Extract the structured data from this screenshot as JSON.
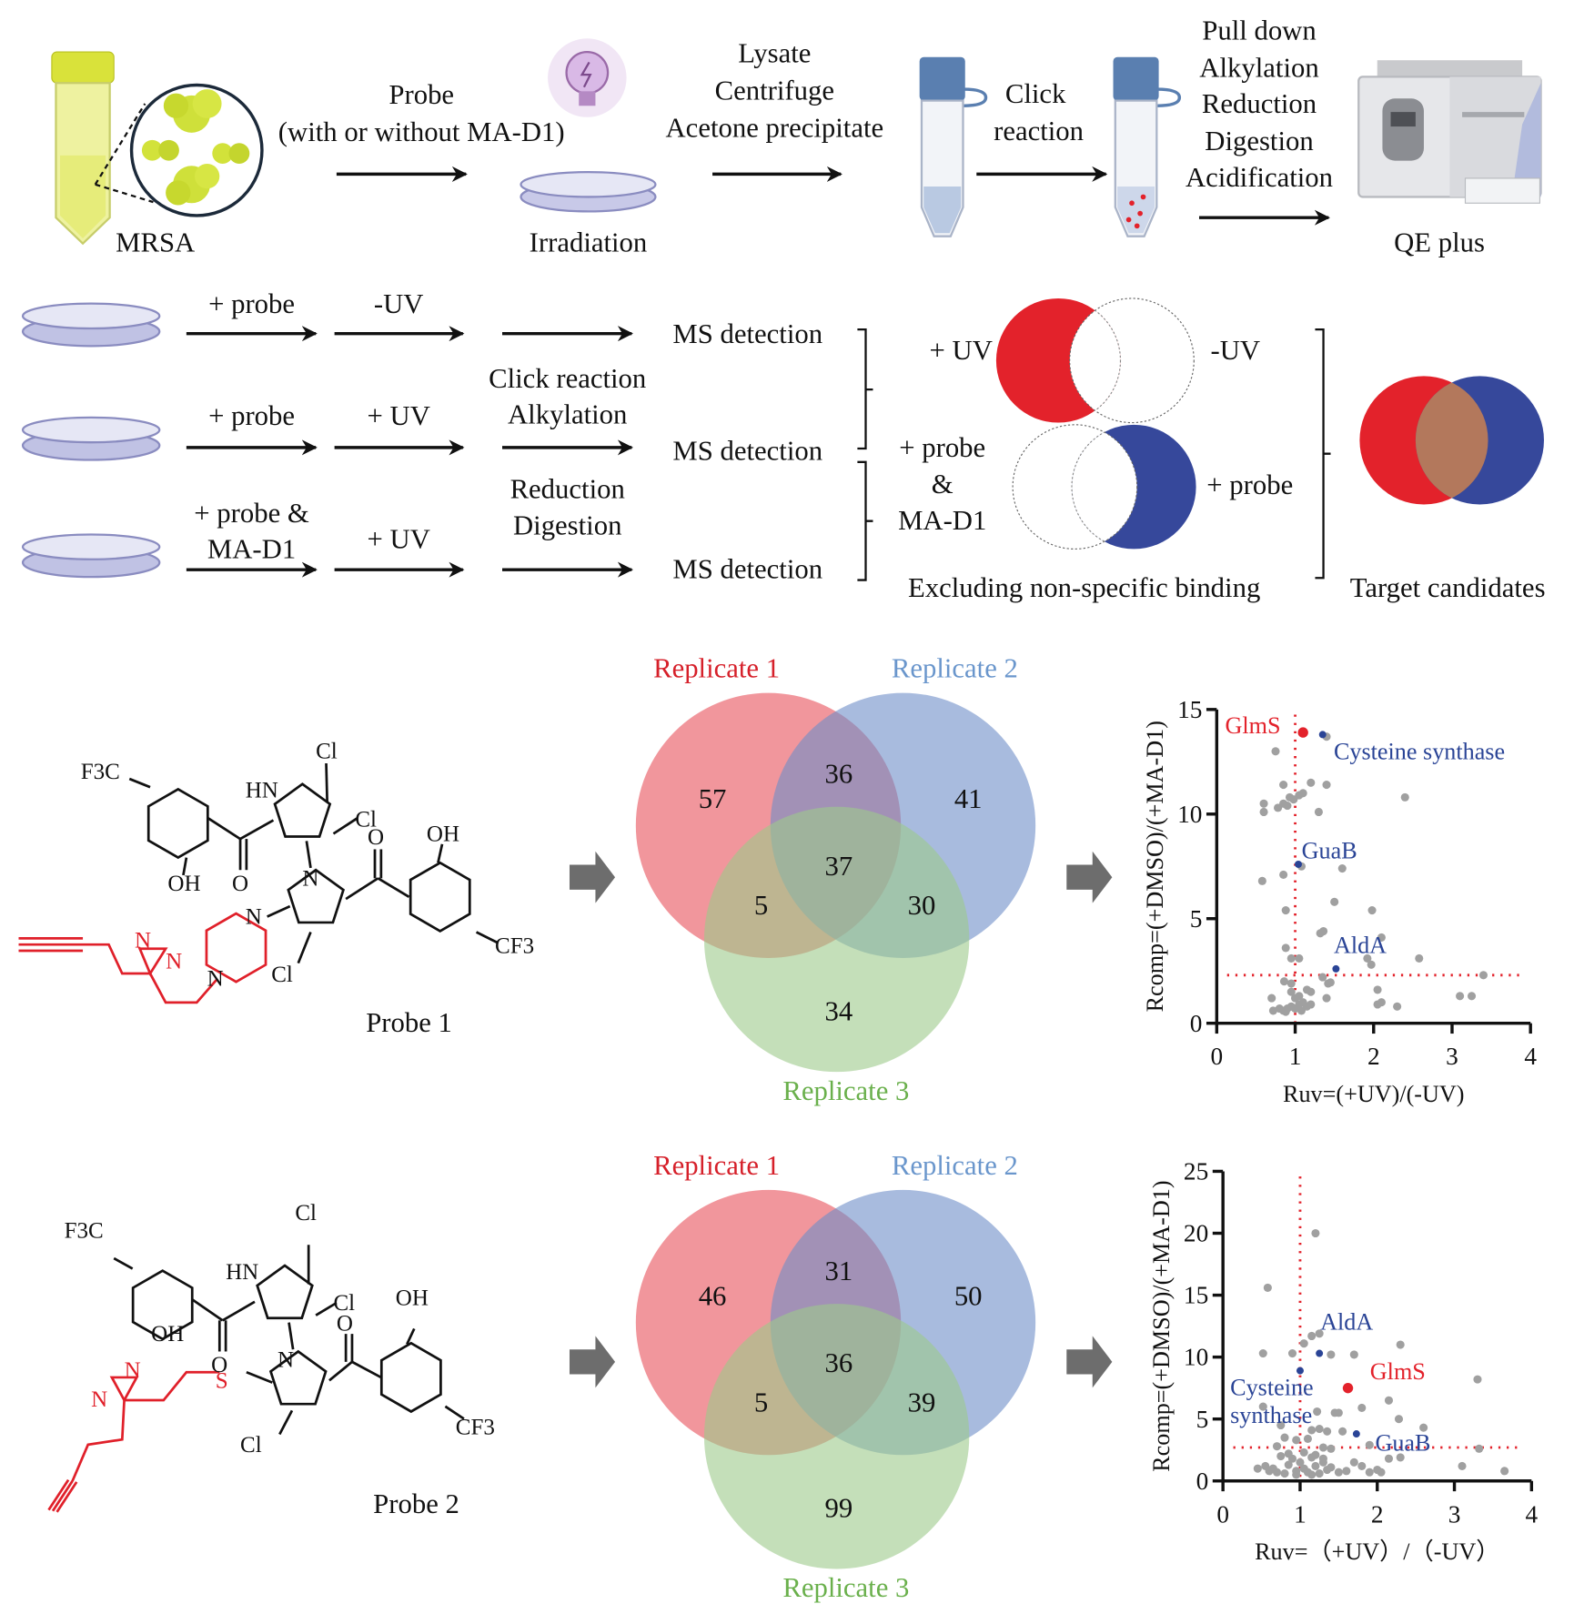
{
  "workflow": {
    "mrsa_label": "MRSA",
    "probe_step": [
      "Probe",
      "(with or without MA-D1)"
    ],
    "irradiation_label": "Irradiation",
    "lysis_step": [
      "Lysate",
      "Centrifuge",
      "Acetone precipitate"
    ],
    "click_step": [
      "Click",
      "reaction"
    ],
    "processing_step": [
      "Pull down",
      "Alkylation",
      "Reduction",
      "Digestion",
      "Acidification"
    ],
    "instrument_label": "QE plus"
  },
  "conditions": {
    "rows": [
      {
        "treatment": [
          "+ probe"
        ],
        "uv": "-UV",
        "detection": "MS detection"
      },
      {
        "treatment": [
          "+ probe"
        ],
        "uv": "+ UV",
        "detection": "MS detection"
      },
      {
        "treatment": [
          "+ probe &",
          "MA-D1"
        ],
        "uv": "+ UV",
        "detection": "MS detection"
      }
    ],
    "middle_steps": [
      "Click reaction",
      "Alkylation",
      "Reduction",
      "Digestion"
    ],
    "venn_uv": {
      "left": "+ UV",
      "right": "-UV"
    },
    "venn_probe": {
      "left": [
        "+ probe",
        "&",
        "MA-D1"
      ],
      "right": "+ probe"
    },
    "excluding_label": "Excluding non-specific binding",
    "target_label": "Target candidates",
    "colors": {
      "uv": "#e3222b",
      "probe": "#36489b",
      "overlap": "#b3785c"
    }
  },
  "probes": [
    {
      "name": "Probe 1",
      "labels": {
        "f3c": "F3C",
        "hn": "HN",
        "cl1": "Cl",
        "cl2": "Cl",
        "cl3": "Cl",
        "o1": "O",
        "o2": "O",
        "oh1": "OH",
        "oh2": "OH",
        "n": "N",
        "cf3": "CF3",
        "pipN1": "N",
        "pipN2": "N",
        "diazN1": "N",
        "diazN2": "N"
      }
    },
    {
      "name": "Probe 2",
      "labels": {
        "f3c": "F3C",
        "hn": "HN",
        "cl1": "Cl",
        "cl2": "Cl",
        "cl3": "Cl",
        "o1": "O",
        "o2": "O",
        "oh1": "OH",
        "oh2": "OH",
        "n": "N",
        "cf3": "CF3",
        "s": "S",
        "diazN1": "N",
        "diazN2": "N"
      }
    }
  ],
  "venns": [
    {
      "sets": [
        "Replicate 1",
        "Replicate 2",
        "Replicate 3"
      ],
      "counts": {
        "only1": 57,
        "only2": 41,
        "only3": 34,
        "r1r2": 36,
        "r1r3": 5,
        "r2r3": 30,
        "all": 37
      }
    },
    {
      "sets": [
        "Replicate 1",
        "Replicate 2",
        "Replicate 3"
      ],
      "counts": {
        "only1": 46,
        "only2": 50,
        "only3": 99,
        "r1r2": 31,
        "r1r3": 5,
        "r2r3": 39,
        "all": 36
      }
    }
  ],
  "venn_colors": {
    "r1": "#e8505a",
    "r2": "#6e8ec8",
    "r3": "#9cc98a",
    "label1": "#d6202a",
    "label2": "#6a96cc",
    "label3": "#6ab04c"
  },
  "chart_data": [
    {
      "type": "scatter",
      "xlabel": "Ruv=(+UV)/(-UV)",
      "ylabel": "Rcomp=(+DMSO)/(+MA-D1)",
      "xlim": [
        0,
        4
      ],
      "ylim": [
        0,
        15
      ],
      "xticks": [
        "0",
        "1",
        "2",
        "3",
        "4"
      ],
      "yticks": [
        "0",
        "5",
        "10",
        "15"
      ],
      "thresholds": {
        "x": 1.0,
        "y": 2.3
      },
      "grid": false,
      "points": [
        [
          0.6,
          10.5
        ],
        [
          0.6,
          10.1
        ],
        [
          0.75,
          13
        ],
        [
          0.85,
          11.4
        ],
        [
          0.78,
          10.3
        ],
        [
          0.85,
          10.5
        ],
        [
          0.9,
          10.4
        ],
        [
          0.93,
          10.8
        ],
        [
          0.98,
          10.7
        ],
        [
          1.05,
          10.9
        ],
        [
          1.1,
          11
        ],
        [
          1.2,
          11.5
        ],
        [
          1.4,
          11.4
        ],
        [
          1.3,
          10.1
        ],
        [
          2.4,
          10.8
        ],
        [
          1.4,
          13.7
        ],
        [
          0.58,
          6.8
        ],
        [
          0.85,
          7.1
        ],
        [
          1.08,
          7.5
        ],
        [
          1.6,
          7.4
        ],
        [
          0.88,
          5.4
        ],
        [
          1.5,
          5.8
        ],
        [
          1.98,
          5.4
        ],
        [
          1.32,
          4.3
        ],
        [
          1.36,
          4.4
        ],
        [
          2.1,
          4.1
        ],
        [
          0.88,
          3.6
        ],
        [
          0.95,
          3.1
        ],
        [
          1.05,
          3.1
        ],
        [
          1.92,
          3.1
        ],
        [
          2.58,
          3.1
        ],
        [
          1.97,
          2.8
        ],
        [
          3.4,
          2.3
        ],
        [
          0.86,
          2.0
        ],
        [
          0.95,
          1.9
        ],
        [
          1.35,
          2.2
        ],
        [
          1.42,
          1.9
        ],
        [
          1.45,
          1.95
        ],
        [
          0.7,
          1.2
        ],
        [
          0.95,
          1.5
        ],
        [
          1.15,
          1.6
        ],
        [
          1.2,
          1.5
        ],
        [
          2.05,
          1.6
        ],
        [
          1.4,
          1.2
        ],
        [
          3.1,
          1.3
        ],
        [
          3.25,
          1.3
        ],
        [
          2.05,
          0.9
        ],
        [
          2.1,
          1.0
        ],
        [
          2.3,
          0.8
        ],
        [
          0.72,
          0.6
        ],
        [
          0.8,
          0.7
        ],
        [
          0.85,
          0.6
        ],
        [
          0.9,
          0.7
        ],
        [
          0.95,
          0.8
        ],
        [
          1.0,
          0.7
        ],
        [
          1.05,
          0.9
        ],
        [
          1.1,
          1.0
        ],
        [
          1.15,
          0.8
        ],
        [
          1.2,
          0.9
        ],
        [
          1.08,
          0.6
        ],
        [
          0.88,
          0.55
        ],
        [
          1.0,
          1.2
        ],
        [
          1.05,
          1.3
        ]
      ],
      "highlights": [
        {
          "name": "GlmS",
          "x": 1.1,
          "y": 13.9,
          "color": "#e3222b"
        },
        {
          "name": "Cysteine synthase",
          "x": 1.35,
          "y": 13.8,
          "color": "#2a4496"
        },
        {
          "name": "GuaB",
          "x": 1.04,
          "y": 7.6,
          "color": "#2a4496"
        },
        {
          "name": "AldA",
          "x": 1.52,
          "y": 2.6,
          "color": "#2a4496"
        }
      ],
      "point_color": "#a0a0a0"
    },
    {
      "type": "scatter",
      "xlabel": "Ruv=（+UV）/（-UV）",
      "ylabel": "Rcomp=(+DMSO)/(+MA-D1)",
      "xlim": [
        0,
        4
      ],
      "ylim": [
        0,
        25
      ],
      "xticks": [
        "0",
        "1",
        "2",
        "3",
        "4"
      ],
      "yticks": [
        "0",
        "5",
        "10",
        "15",
        "20",
        "25"
      ],
      "thresholds": {
        "x": 1.0,
        "y": 2.7
      },
      "grid": false,
      "points": [
        [
          1.2,
          20
        ],
        [
          0.58,
          15.6
        ],
        [
          0.52,
          10.3
        ],
        [
          0.9,
          10.3
        ],
        [
          1.05,
          11.1
        ],
        [
          1.15,
          11.7
        ],
        [
          1.25,
          11.9
        ],
        [
          1.4,
          10.2
        ],
        [
          1.7,
          10.2
        ],
        [
          2.3,
          11
        ],
        [
          3.3,
          8.2
        ],
        [
          2.15,
          6.5
        ],
        [
          1.8,
          5.9
        ],
        [
          0.52,
          6
        ],
        [
          1.22,
          5.6
        ],
        [
          1.45,
          5.5
        ],
        [
          1.5,
          5.5
        ],
        [
          2.28,
          5
        ],
        [
          2.6,
          4.3
        ],
        [
          0.75,
          4.5
        ],
        [
          1.55,
          4
        ],
        [
          1.35,
          4
        ],
        [
          1.25,
          4.2
        ],
        [
          1.15,
          4.1
        ],
        [
          0.8,
          3.5
        ],
        [
          0.95,
          3.3
        ],
        [
          1.1,
          3.4
        ],
        [
          1.9,
          2.9
        ],
        [
          0.7,
          2.8
        ],
        [
          1.3,
          2.7
        ],
        [
          1.4,
          2.6
        ],
        [
          3.32,
          2.6
        ],
        [
          2.15,
          1.8
        ],
        [
          2.3,
          1.9
        ],
        [
          1.7,
          1.5
        ],
        [
          1.8,
          1.2
        ],
        [
          3.1,
          1.2
        ],
        [
          3.65,
          0.8
        ],
        [
          1.9,
          0.7
        ],
        [
          2.05,
          0.7
        ],
        [
          2.0,
          0.9
        ],
        [
          0.45,
          1.0
        ],
        [
          0.55,
          1.2
        ],
        [
          0.65,
          1.0
        ],
        [
          0.7,
          0.7
        ],
        [
          0.8,
          0.6
        ],
        [
          0.85,
          1.3
        ],
        [
          0.9,
          1.8
        ],
        [
          0.95,
          0.8
        ],
        [
          1.0,
          1.5
        ],
        [
          1.05,
          1.0
        ],
        [
          1.1,
          0.7
        ],
        [
          1.15,
          1.9
        ],
        [
          1.2,
          1.2
        ],
        [
          1.25,
          0.6
        ],
        [
          1.3,
          1.5
        ],
        [
          1.35,
          0.9
        ],
        [
          1.4,
          1.1
        ],
        [
          1.5,
          0.7
        ],
        [
          1.6,
          0.8
        ],
        [
          0.75,
          2.0
        ],
        [
          0.85,
          2.2
        ],
        [
          1.05,
          2.3
        ],
        [
          1.2,
          2.1
        ],
        [
          1.3,
          1.8
        ],
        [
          0.95,
          0.5
        ],
        [
          1.15,
          0.5
        ],
        [
          0.6,
          0.8
        ]
      ],
      "highlights": [
        {
          "name": "GlmS",
          "x": 1.62,
          "y": 7.5,
          "color": "#e3222b"
        },
        {
          "name": "AldA",
          "x": 1.25,
          "y": 10.3,
          "color": "#2a4496"
        },
        {
          "name": "Cysteine synthase",
          "x": 1.0,
          "y": 8.9,
          "color": "#2a4496"
        },
        {
          "name": "GuaB",
          "x": 1.73,
          "y": 3.8,
          "color": "#2a4496"
        }
      ],
      "point_color": "#a0a0a0"
    }
  ]
}
